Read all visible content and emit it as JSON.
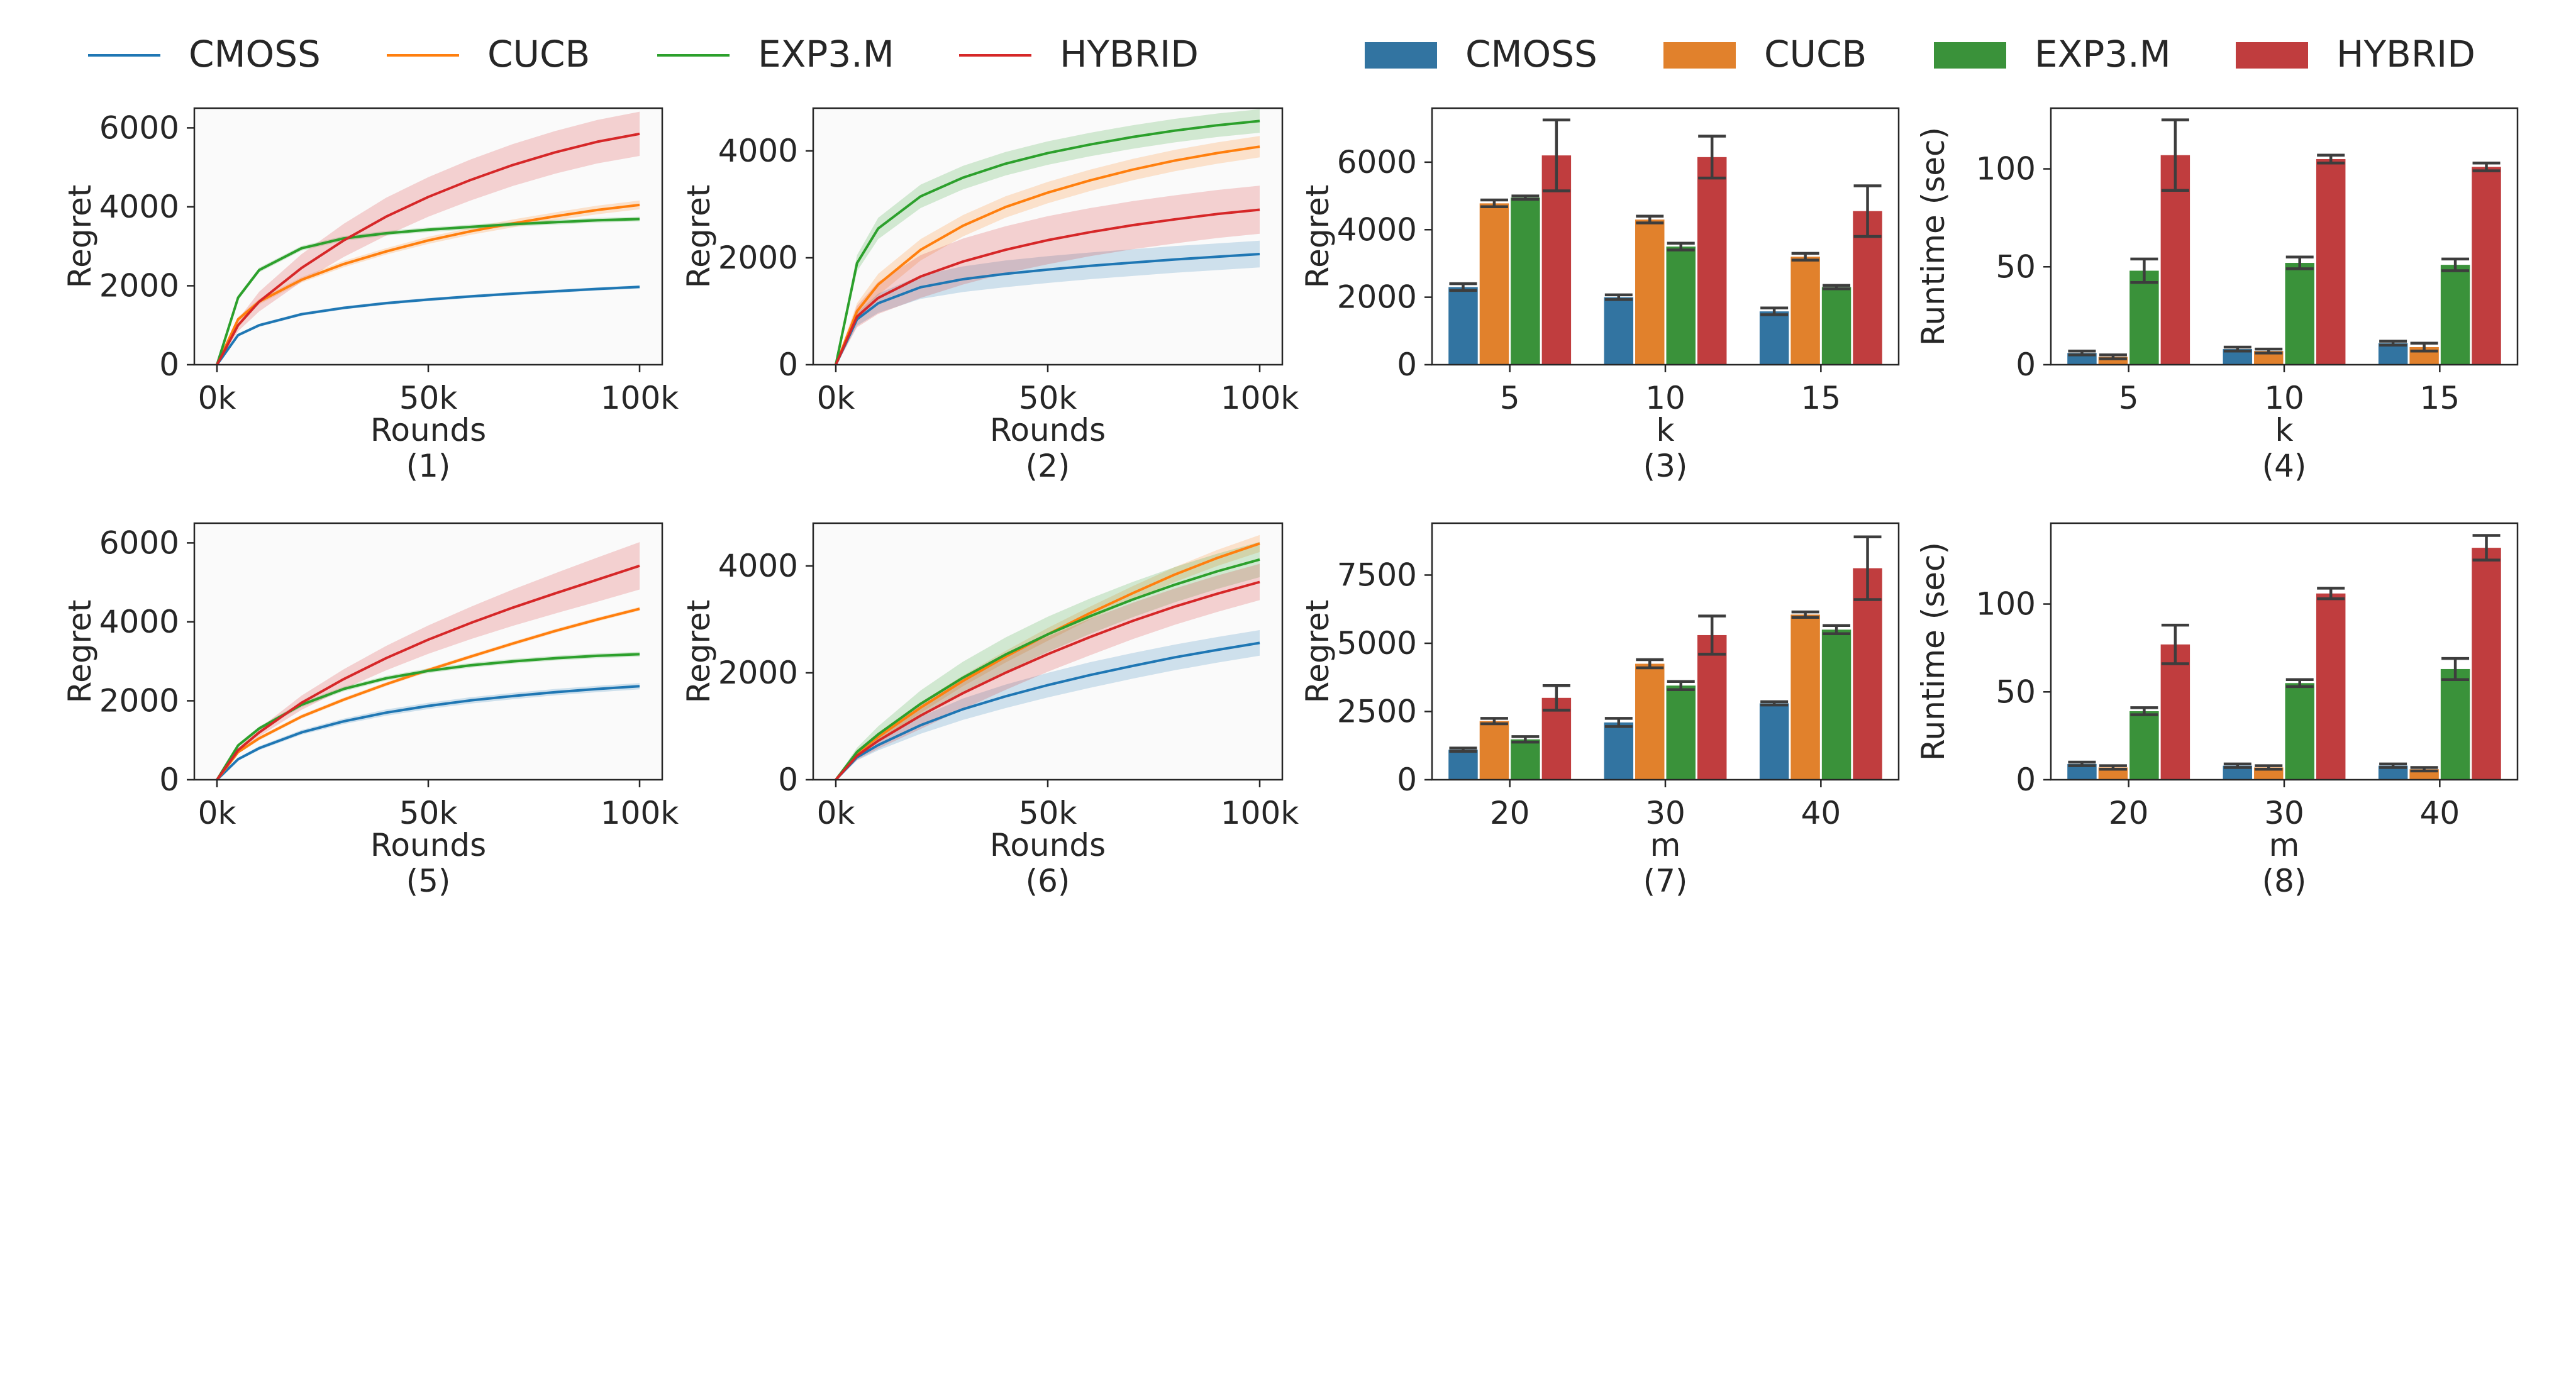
{
  "legends": {
    "lines": [
      {
        "label": "CMOSS",
        "color": "#1f77b4"
      },
      {
        "label": "CUCB",
        "color": "#ff7f0e"
      },
      {
        "label": "EXP3.M",
        "color": "#2ca02c"
      },
      {
        "label": "HYBRID",
        "color": "#d62728"
      }
    ],
    "bars": [
      {
        "label": "CMOSS",
        "color": "#3274a1"
      },
      {
        "label": "CUCB",
        "color": "#e1812c"
      },
      {
        "label": "EXP3.M",
        "color": "#3a923a"
      },
      {
        "label": "HYBRID",
        "color": "#c03d3e"
      }
    ]
  },
  "chart_data": [
    {
      "id": "p1",
      "type": "line",
      "caption": "(1)",
      "xlabel": "Rounds",
      "ylabel": "Regret",
      "xlim": [
        0,
        100000
      ],
      "ylim": [
        0,
        6500
      ],
      "xticks": [
        0,
        50000,
        100000
      ],
      "xtick_labels": [
        "0k",
        "50k",
        "100k"
      ],
      "yticks": [
        0,
        2000,
        4000,
        6000
      ],
      "ytick_labels": [
        "0",
        "2000",
        "4000",
        "6000"
      ],
      "x": [
        0,
        5000,
        10000,
        20000,
        30000,
        40000,
        50000,
        60000,
        70000,
        80000,
        90000,
        100000
      ],
      "series": [
        {
          "name": "CMOSS",
          "values": [
            0,
            750,
            1000,
            1280,
            1440,
            1560,
            1650,
            1730,
            1800,
            1860,
            1920,
            1970
          ],
          "band": [
            30,
            40,
            40,
            40,
            40,
            40,
            40,
            40,
            40,
            40,
            40,
            40
          ]
        },
        {
          "name": "CUCB",
          "values": [
            0,
            1150,
            1600,
            2150,
            2550,
            2870,
            3150,
            3380,
            3580,
            3760,
            3920,
            4050
          ],
          "band": [
            30,
            60,
            70,
            70,
            80,
            80,
            90,
            90,
            100,
            100,
            110,
            110
          ]
        },
        {
          "name": "EXP3.M",
          "values": [
            0,
            1700,
            2400,
            2950,
            3200,
            3330,
            3420,
            3490,
            3560,
            3610,
            3660,
            3690
          ],
          "band": [
            30,
            60,
            60,
            60,
            60,
            60,
            60,
            60,
            60,
            60,
            60,
            60
          ]
        },
        {
          "name": "HYBRID",
          "values": [
            0,
            1000,
            1600,
            2450,
            3150,
            3750,
            4250,
            4680,
            5060,
            5380,
            5650,
            5850
          ],
          "band": [
            30,
            150,
            250,
            350,
            420,
            480,
            500,
            520,
            530,
            540,
            550,
            560
          ]
        }
      ]
    },
    {
      "id": "p2",
      "type": "line",
      "caption": "(2)",
      "xlabel": "Rounds",
      "ylabel": "Regret",
      "xlim": [
        0,
        100000
      ],
      "ylim": [
        0,
        4800
      ],
      "xticks": [
        0,
        50000,
        100000
      ],
      "xtick_labels": [
        "0k",
        "50k",
        "100k"
      ],
      "yticks": [
        0,
        2000,
        4000
      ],
      "ytick_labels": [
        "0",
        "2000",
        "4000"
      ],
      "x": [
        0,
        5000,
        10000,
        20000,
        30000,
        40000,
        50000,
        60000,
        70000,
        80000,
        90000,
        100000
      ],
      "series": [
        {
          "name": "CMOSS",
          "values": [
            0,
            850,
            1150,
            1450,
            1600,
            1700,
            1780,
            1850,
            1910,
            1970,
            2020,
            2070
          ],
          "band": [
            30,
            120,
            180,
            220,
            240,
            250,
            250,
            250,
            250,
            250,
            250,
            250
          ]
        },
        {
          "name": "CUCB",
          "values": [
            0,
            1000,
            1500,
            2150,
            2600,
            2950,
            3220,
            3450,
            3650,
            3820,
            3960,
            4080
          ],
          "band": [
            30,
            150,
            200,
            200,
            200,
            200,
            200,
            200,
            200,
            200,
            200,
            200
          ]
        },
        {
          "name": "EXP3.M",
          "values": [
            0,
            1900,
            2550,
            3150,
            3500,
            3760,
            3960,
            4120,
            4260,
            4380,
            4480,
            4560
          ],
          "band": [
            30,
            150,
            200,
            220,
            220,
            220,
            220,
            220,
            220,
            220,
            220,
            220
          ]
        },
        {
          "name": "HYBRID",
          "values": [
            0,
            900,
            1250,
            1650,
            1930,
            2150,
            2330,
            2480,
            2610,
            2720,
            2820,
            2900
          ],
          "band": [
            30,
            200,
            300,
            400,
            430,
            440,
            450,
            450,
            450,
            450,
            450,
            450
          ]
        }
      ]
    },
    {
      "id": "p3",
      "type": "bar",
      "caption": "(3)",
      "xlabel": "k",
      "ylabel": "Regret",
      "categories": [
        "5",
        "10",
        "15"
      ],
      "ylim": [
        0,
        7600
      ],
      "yticks": [
        0,
        2000,
        4000,
        6000
      ],
      "ytick_labels": [
        "0",
        "2000",
        "4000",
        "6000"
      ],
      "series": [
        {
          "name": "CMOSS",
          "values": [
            2300,
            2000,
            1580
          ],
          "errors": [
            100,
            70,
            100
          ]
        },
        {
          "name": "CUCB",
          "values": [
            4780,
            4300,
            3200
          ],
          "errors": [
            100,
            100,
            100
          ]
        },
        {
          "name": "EXP3.M",
          "values": [
            4950,
            3500,
            2300
          ],
          "errors": [
            50,
            100,
            50
          ]
        },
        {
          "name": "HYBRID",
          "values": [
            6200,
            6150,
            4550
          ],
          "errors": [
            1050,
            620,
            750
          ]
        }
      ]
    },
    {
      "id": "p4",
      "type": "bar",
      "caption": "(4)",
      "xlabel": "k",
      "ylabel": "Runtime (sec)",
      "categories": [
        "5",
        "10",
        "15"
      ],
      "ylim": [
        0,
        131
      ],
      "yticks": [
        0,
        50,
        100
      ],
      "ytick_labels": [
        "0",
        "50",
        "100"
      ],
      "series": [
        {
          "name": "CMOSS",
          "values": [
            6,
            8,
            11
          ],
          "errors": [
            1,
            1,
            1
          ]
        },
        {
          "name": "CUCB",
          "values": [
            4,
            7,
            9
          ],
          "errors": [
            1,
            1,
            2
          ]
        },
        {
          "name": "EXP3.M",
          "values": [
            48,
            52,
            51
          ],
          "errors": [
            6,
            3,
            3
          ]
        },
        {
          "name": "HYBRID",
          "values": [
            107,
            105,
            101
          ],
          "errors": [
            18,
            2,
            2
          ]
        }
      ]
    },
    {
      "id": "p5",
      "type": "line",
      "caption": "(5)",
      "xlabel": "Rounds",
      "ylabel": "Regret",
      "xlim": [
        0,
        100000
      ],
      "ylim": [
        0,
        6500
      ],
      "xticks": [
        0,
        50000,
        100000
      ],
      "xtick_labels": [
        "0k",
        "50k",
        "100k"
      ],
      "yticks": [
        0,
        2000,
        4000,
        6000
      ],
      "ytick_labels": [
        "0",
        "2000",
        "4000",
        "6000"
      ],
      "x": [
        0,
        5000,
        10000,
        20000,
        30000,
        40000,
        50000,
        60000,
        70000,
        80000,
        90000,
        100000
      ],
      "series": [
        {
          "name": "CMOSS",
          "values": [
            0,
            520,
            800,
            1200,
            1480,
            1700,
            1870,
            2010,
            2120,
            2220,
            2300,
            2370
          ],
          "band": [
            20,
            40,
            50,
            60,
            70,
            80,
            80,
            80,
            80,
            80,
            80,
            80
          ]
        },
        {
          "name": "CUCB",
          "values": [
            0,
            700,
            1050,
            1600,
            2030,
            2420,
            2780,
            3120,
            3450,
            3770,
            4060,
            4330
          ],
          "band": [
            20,
            40,
            50,
            50,
            50,
            50,
            50,
            50,
            50,
            50,
            50,
            50
          ]
        },
        {
          "name": "EXP3.M",
          "values": [
            0,
            870,
            1300,
            1900,
            2300,
            2570,
            2760,
            2900,
            3000,
            3080,
            3140,
            3180
          ],
          "band": [
            20,
            40,
            50,
            60,
            60,
            60,
            60,
            60,
            60,
            60,
            60,
            60
          ]
        },
        {
          "name": "HYBRID",
          "values": [
            0,
            750,
            1200,
            1950,
            2550,
            3080,
            3550,
            3970,
            4360,
            4720,
            5070,
            5420
          ],
          "band": [
            20,
            60,
            100,
            180,
            250,
            310,
            360,
            410,
            460,
            510,
            560,
            600
          ]
        }
      ]
    },
    {
      "id": "p6",
      "type": "line",
      "caption": "(6)",
      "xlabel": "Rounds",
      "ylabel": "Regret",
      "xlim": [
        0,
        100000
      ],
      "ylim": [
        0,
        4800
      ],
      "xticks": [
        0,
        50000,
        100000
      ],
      "xtick_labels": [
        "0k",
        "50k",
        "100k"
      ],
      "yticks": [
        0,
        2000,
        4000
      ],
      "ytick_labels": [
        "0",
        "2000",
        "4000"
      ],
      "x": [
        0,
        5000,
        10000,
        20000,
        30000,
        40000,
        50000,
        60000,
        70000,
        80000,
        90000,
        100000
      ],
      "series": [
        {
          "name": "CMOSS",
          "values": [
            0,
            420,
            650,
            1020,
            1320,
            1560,
            1770,
            1960,
            2130,
            2290,
            2430,
            2560
          ],
          "band": [
            20,
            60,
            100,
            160,
            200,
            220,
            230,
            240,
            240,
            240,
            240,
            240
          ]
        },
        {
          "name": "CUCB",
          "values": [
            0,
            500,
            800,
            1350,
            1850,
            2300,
            2720,
            3120,
            3490,
            3840,
            4150,
            4420
          ],
          "band": [
            20,
            60,
            80,
            100,
            100,
            110,
            120,
            120,
            130,
            140,
            150,
            160
          ]
        },
        {
          "name": "EXP3.M",
          "values": [
            0,
            520,
            850,
            1420,
            1910,
            2340,
            2720,
            3060,
            3370,
            3650,
            3900,
            4120
          ],
          "band": [
            20,
            80,
            150,
            250,
            300,
            320,
            330,
            330,
            330,
            330,
            330,
            330
          ]
        },
        {
          "name": "HYBRID",
          "values": [
            0,
            450,
            730,
            1200,
            1620,
            2000,
            2350,
            2670,
            2970,
            3240,
            3480,
            3700
          ],
          "band": [
            20,
            80,
            150,
            250,
            300,
            320,
            330,
            340,
            340,
            340,
            340,
            340
          ]
        }
      ]
    },
    {
      "id": "p7",
      "type": "bar",
      "caption": "(7)",
      "xlabel": "m",
      "ylabel": "Regret",
      "categories": [
        "20",
        "30",
        "40"
      ],
      "ylim": [
        0,
        9400
      ],
      "yticks": [
        0,
        2500,
        5000,
        7500
      ],
      "ytick_labels": [
        "0",
        "2500",
        "5000",
        "7500"
      ],
      "series": [
        {
          "name": "CMOSS",
          "values": [
            1100,
            2100,
            2800
          ],
          "errors": [
            60,
            150,
            60
          ]
        },
        {
          "name": "CUCB",
          "values": [
            2150,
            4250,
            6050
          ],
          "errors": [
            100,
            150,
            100
          ]
        },
        {
          "name": "EXP3.M",
          "values": [
            1480,
            3450,
            5500
          ],
          "errors": [
            100,
            150,
            150
          ]
        },
        {
          "name": "HYBRID",
          "values": [
            3000,
            5300,
            7750
          ],
          "errors": [
            450,
            700,
            1150
          ]
        }
      ]
    },
    {
      "id": "p8",
      "type": "bar",
      "caption": "(8)",
      "xlabel": "m",
      "ylabel": "Runtime (sec)",
      "categories": [
        "20",
        "30",
        "40"
      ],
      "ylim": [
        0,
        146
      ],
      "yticks": [
        0,
        50,
        100
      ],
      "ytick_labels": [
        "0",
        "50",
        "100"
      ],
      "series": [
        {
          "name": "CMOSS",
          "values": [
            9,
            8,
            8
          ],
          "errors": [
            1,
            1,
            1
          ]
        },
        {
          "name": "CUCB",
          "values": [
            7,
            7,
            6
          ],
          "errors": [
            1,
            1,
            1
          ]
        },
        {
          "name": "EXP3.M",
          "values": [
            39,
            55,
            63
          ],
          "errors": [
            2,
            2,
            6
          ]
        },
        {
          "name": "HYBRID",
          "values": [
            77,
            106,
            132
          ],
          "errors": [
            11,
            3,
            7
          ]
        }
      ]
    }
  ]
}
